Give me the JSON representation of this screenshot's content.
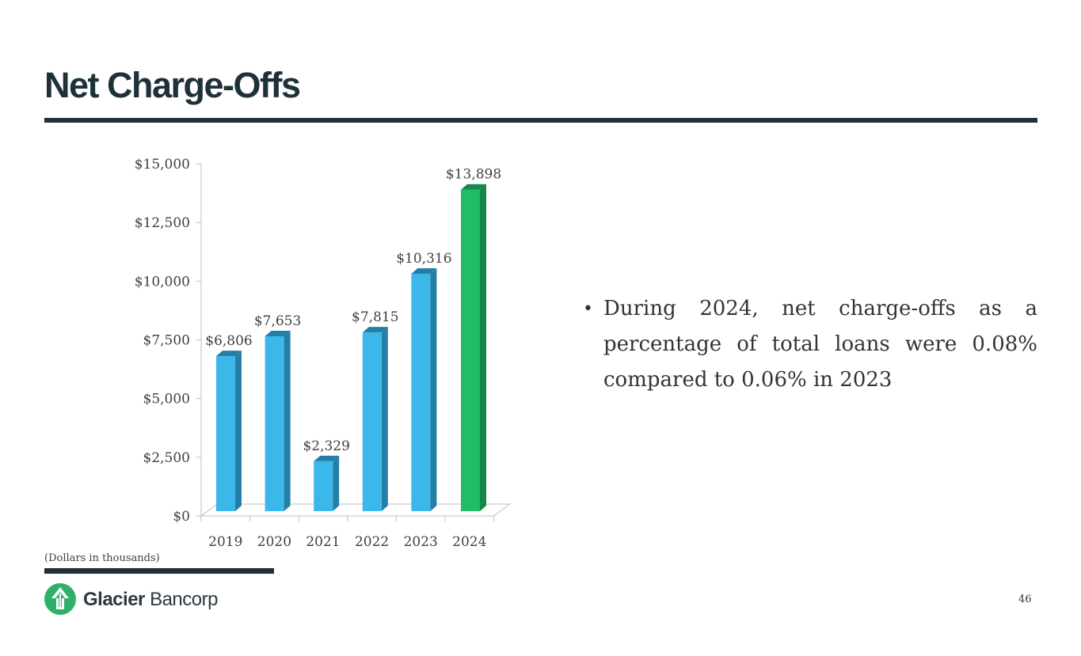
{
  "page": {
    "title": "Net Charge-Offs",
    "bullet": "During 2024, net charge-offs as a percentage of total loans were 0.08% compared to 0.06% in 2023",
    "footnote": "(Dollars in thousands)",
    "page_number": "46",
    "logo": {
      "name_bold": "Glacier",
      "name_light": "Bancorp"
    }
  },
  "colors": {
    "title": "#1e3038",
    "bar_blue": "#3cb7ea",
    "bar_blue_side": "#237fa6",
    "bar_green": "#22bb66",
    "bar_green_side": "#14874a",
    "logo_green": "#2eb06a"
  },
  "chart_data": {
    "type": "bar",
    "title": "",
    "xlabel": "",
    "ylabel": "",
    "categories": [
      "2019",
      "2020",
      "2021",
      "2022",
      "2023",
      "2024"
    ],
    "values": [
      6806,
      7653,
      2329,
      7815,
      10316,
      13898
    ],
    "data_labels": [
      "$6,806",
      "$7,653",
      "$2,329",
      "$7,815",
      "$10,316",
      "$13,898"
    ],
    "ylim": [
      0,
      15000
    ],
    "yticks": [
      0,
      2500,
      5000,
      7500,
      10000,
      12500,
      15000
    ],
    "ytick_labels": [
      "$0",
      "$2,500",
      "$5,000",
      "$7,500",
      "$10,000",
      "$12,500",
      "$15,000"
    ],
    "highlight_category": "2024",
    "grid": false,
    "legend": "none"
  }
}
